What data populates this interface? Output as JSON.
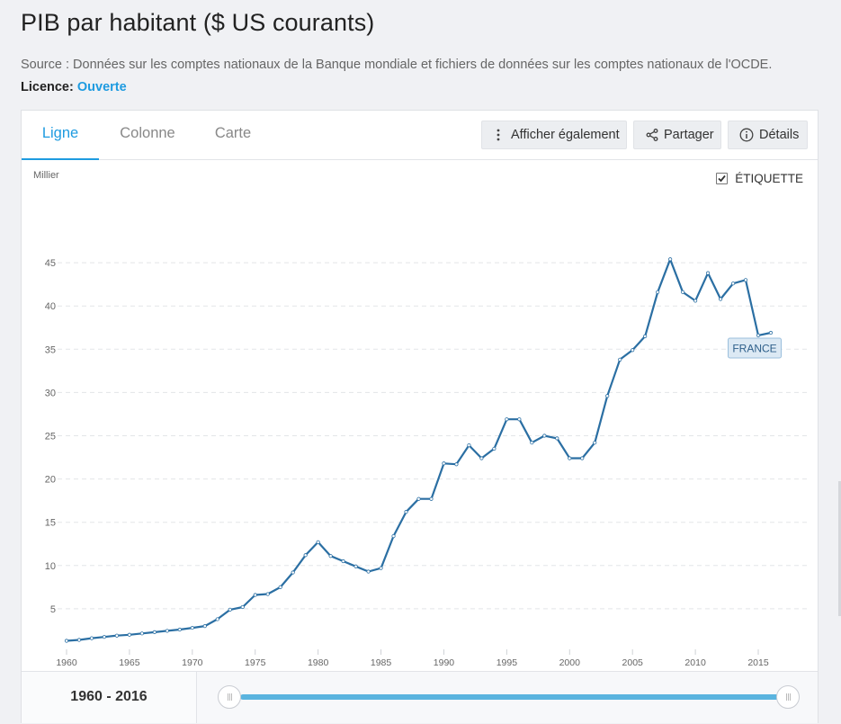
{
  "page": {
    "title": "PIB par habitant ($ US courants)",
    "source": "Source : Données sur les comptes nationaux de la Banque mondiale et fichiers de données sur les comptes nationaux de l'OCDE.",
    "licence_label": "Licence:",
    "licence_value": "Ouverte"
  },
  "tabs": [
    {
      "label": "Ligne",
      "active": true
    },
    {
      "label": "Colonne",
      "active": false
    },
    {
      "label": "Carte",
      "active": false
    }
  ],
  "toolbar": {
    "show_also": "Afficher également",
    "share": "Partager",
    "details": "Détails"
  },
  "label_toggle": {
    "label": "ÉTIQUETTE",
    "checked": true
  },
  "range": {
    "label": "1960 - 2016",
    "start": 1960,
    "end": 2016
  },
  "colors": {
    "accent": "#1e9be0",
    "series": "#2b6fa3",
    "label_bg": "#dce9f4",
    "label_border": "#9bbfdc"
  },
  "chart_data": {
    "type": "line",
    "unit_label": "Millier",
    "ylim": [
      0,
      48
    ],
    "yticks": [
      5,
      10,
      15,
      20,
      25,
      30,
      35,
      40,
      45
    ],
    "xlim": [
      1960,
      2016
    ],
    "xticks": [
      1960,
      1965,
      1970,
      1975,
      1980,
      1985,
      1990,
      1995,
      2000,
      2005,
      2010,
      2015
    ],
    "grid": "horizontal-dashed",
    "series": [
      {
        "name": "FRANCE",
        "x": [
          1960,
          1961,
          1962,
          1963,
          1964,
          1965,
          1966,
          1967,
          1968,
          1969,
          1970,
          1971,
          1972,
          1973,
          1974,
          1975,
          1976,
          1977,
          1978,
          1979,
          1980,
          1981,
          1982,
          1983,
          1984,
          1985,
          1986,
          1987,
          1988,
          1989,
          1990,
          1991,
          1992,
          1993,
          1994,
          1995,
          1996,
          1997,
          1998,
          1999,
          2000,
          2001,
          2002,
          2003,
          2004,
          2005,
          2006,
          2007,
          2008,
          2009,
          2010,
          2011,
          2012,
          2013,
          2014,
          2015,
          2016
        ],
        "values": [
          1.3,
          1.4,
          1.6,
          1.75,
          1.9,
          2.0,
          2.15,
          2.3,
          2.45,
          2.6,
          2.8,
          3.0,
          3.8,
          4.9,
          5.2,
          6.6,
          6.7,
          7.5,
          9.2,
          11.2,
          12.7,
          11.1,
          10.5,
          9.9,
          9.3,
          9.7,
          13.4,
          16.2,
          17.7,
          17.7,
          21.8,
          21.7,
          23.9,
          22.4,
          23.5,
          26.9,
          26.9,
          24.2,
          25.0,
          24.7,
          22.4,
          22.4,
          24.2,
          29.6,
          33.8,
          34.9,
          36.5,
          41.6,
          45.4,
          41.6,
          40.6,
          43.8,
          40.8,
          42.6,
          43.0,
          36.6,
          36.9
        ]
      }
    ]
  }
}
